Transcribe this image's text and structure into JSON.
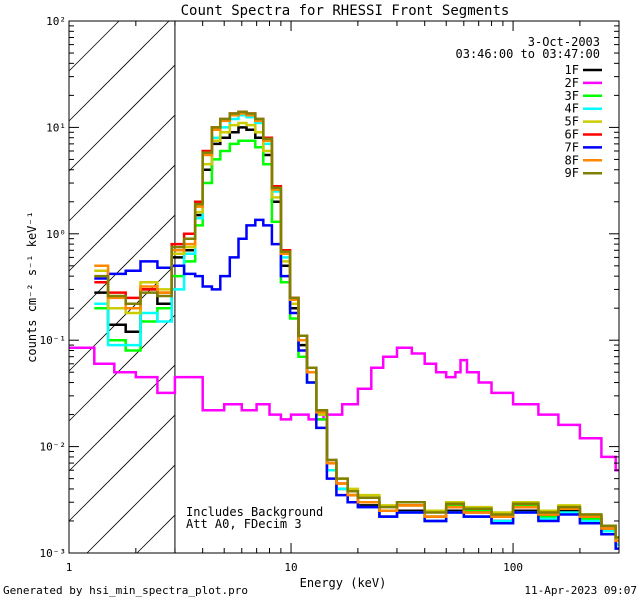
{
  "chart_data": {
    "type": "line",
    "title": "Count Spectra for RHESSI Front Segments",
    "xlabel": "Energy (keV)",
    "ylabel": "counts cm⁻² s⁻¹ keV⁻¹",
    "xscale": "log",
    "yscale": "log",
    "xlim": [
      1,
      300
    ],
    "ylim": [
      0.001,
      100
    ],
    "x_ticks": [
      {
        "value": 1,
        "label": "1"
      },
      {
        "value": 10,
        "label": "10"
      },
      {
        "value": 100,
        "label": "100"
      }
    ],
    "y_ticks": [
      {
        "value": 0.001,
        "label": "10⁻³"
      },
      {
        "value": 0.01,
        "label": "10⁻²"
      },
      {
        "value": 0.1,
        "label": "10⁻¹"
      },
      {
        "value": 1,
        "label": "10⁰"
      },
      {
        "value": 10,
        "label": "10¹"
      },
      {
        "value": 100,
        "label": "10²"
      }
    ],
    "hatched_region": [
      1,
      3
    ],
    "date": "3-Oct-2003",
    "time_range": "03:46:00 to 03:47:00",
    "legend_position": "top-right",
    "annotation_lines": [
      "Includes Background",
      "Att A0, FDecim 3"
    ],
    "footer_left": "Generated by hsi_min_spectra_plot.pro",
    "footer_right": "11-Apr-2023 09:07",
    "series": [
      {
        "name": "1F",
        "color": "#000000",
        "x": [
          1.3,
          1.5,
          1.8,
          2.1,
          2.5,
          2.9,
          3.3,
          3.7,
          4.0,
          4.4,
          4.8,
          5.3,
          5.8,
          6.3,
          6.9,
          7.5,
          8.2,
          9.0,
          9.9,
          10.8,
          11.8,
          13.0,
          14.5,
          16.0,
          18.0,
          20.0,
          25.0,
          30.0,
          40.0,
          50.0,
          60.0,
          80.0,
          100.0,
          130.0,
          160.0,
          200.0,
          250.0,
          290.0
        ],
        "y": [
          0.28,
          0.14,
          0.12,
          0.3,
          0.22,
          0.6,
          0.7,
          1.5,
          4.0,
          7.0,
          8.0,
          9.0,
          10.0,
          9.5,
          8.0,
          5.5,
          2.0,
          0.5,
          0.2,
          0.09,
          0.05,
          0.02,
          0.006,
          0.004,
          0.003,
          0.0028,
          0.0022,
          0.0025,
          0.002,
          0.0025,
          0.0022,
          0.002,
          0.0025,
          0.0022,
          0.0025,
          0.0021,
          0.0016,
          0.0012
        ]
      },
      {
        "name": "2F",
        "color": "#ff00ff",
        "x": [
          1.0,
          1.3,
          1.6,
          2.0,
          2.5,
          3.0,
          3.5,
          4.0,
          5.0,
          6.0,
          7.0,
          8.0,
          9.0,
          10.0,
          12.0,
          14.0,
          17.0,
          20.0,
          23.0,
          26.0,
          30.0,
          35.0,
          40.0,
          45.0,
          50.0,
          55.0,
          58.0,
          62.0,
          70.0,
          80.0,
          100.0,
          130.0,
          160.0,
          200.0,
          250.0,
          290.0
        ],
        "y": [
          0.085,
          0.06,
          0.05,
          0.045,
          0.032,
          0.045,
          0.045,
          0.022,
          0.025,
          0.022,
          0.025,
          0.02,
          0.018,
          0.02,
          0.018,
          0.02,
          0.025,
          0.035,
          0.055,
          0.07,
          0.085,
          0.075,
          0.06,
          0.05,
          0.045,
          0.05,
          0.065,
          0.05,
          0.04,
          0.032,
          0.025,
          0.02,
          0.016,
          0.012,
          0.008,
          0.006
        ]
      },
      {
        "name": "3F",
        "color": "#00ff00",
        "x": [
          1.3,
          1.5,
          1.8,
          2.1,
          2.5,
          2.9,
          3.3,
          3.7,
          4.0,
          4.4,
          4.8,
          5.3,
          5.8,
          6.3,
          6.9,
          7.5,
          8.2,
          9.0,
          9.9,
          10.8,
          11.8,
          13.0,
          14.5,
          16.0,
          18.0,
          20.0,
          25.0,
          30.0,
          40.0,
          50.0,
          60.0,
          80.0,
          100.0,
          130.0,
          160.0,
          200.0,
          250.0,
          290.0
        ],
        "y": [
          0.2,
          0.1,
          0.08,
          0.15,
          0.2,
          0.4,
          0.55,
          1.2,
          3.0,
          5.0,
          6.0,
          7.0,
          7.5,
          7.5,
          6.5,
          4.5,
          1.3,
          0.35,
          0.16,
          0.07,
          0.04,
          0.018,
          0.006,
          0.004,
          0.0035,
          0.003,
          0.0025,
          0.0028,
          0.0022,
          0.0028,
          0.0025,
          0.0022,
          0.0028,
          0.0022,
          0.0026,
          0.0021,
          0.0017,
          0.0013
        ]
      },
      {
        "name": "4F",
        "color": "#00ffff",
        "x": [
          1.3,
          1.5,
          1.8,
          2.1,
          2.5,
          2.9,
          3.3,
          3.7,
          4.0,
          4.4,
          4.8,
          5.3,
          5.8,
          6.3,
          6.9,
          7.5,
          8.2,
          9.0,
          9.9,
          10.8,
          11.8,
          13.0,
          14.5,
          16.0,
          18.0,
          20.0,
          25.0,
          30.0,
          40.0,
          50.0,
          60.0,
          80.0,
          100.0,
          130.0,
          160.0,
          200.0,
          250.0,
          290.0
        ],
        "y": [
          0.22,
          0.09,
          0.09,
          0.18,
          0.15,
          0.3,
          0.65,
          1.4,
          4.5,
          8.0,
          10.0,
          12.0,
          13.0,
          12.5,
          11.0,
          7.0,
          2.5,
          0.6,
          0.22,
          0.1,
          0.05,
          0.02,
          0.006,
          0.004,
          0.003,
          0.0027,
          0.0022,
          0.0024,
          0.002,
          0.0024,
          0.0022,
          0.002,
          0.0024,
          0.0021,
          0.0024,
          0.002,
          0.0016,
          0.0012
        ]
      },
      {
        "name": "5F",
        "color": "#cccc00",
        "x": [
          1.3,
          1.5,
          1.8,
          2.1,
          2.5,
          2.9,
          3.3,
          3.7,
          4.0,
          4.4,
          4.8,
          5.3,
          5.8,
          6.3,
          6.9,
          7.5,
          8.2,
          9.0,
          9.9,
          10.8,
          11.8,
          13.0,
          14.5,
          16.0,
          18.0,
          20.0,
          25.0,
          30.0,
          40.0,
          50.0,
          60.0,
          80.0,
          100.0,
          130.0,
          160.0,
          200.0,
          250.0,
          290.0
        ],
        "y": [
          0.45,
          0.2,
          0.18,
          0.35,
          0.3,
          0.65,
          0.75,
          1.6,
          4.5,
          7.5,
          9.0,
          10.5,
          11.0,
          10.5,
          9.0,
          6.0,
          2.2,
          0.55,
          0.22,
          0.1,
          0.05,
          0.02,
          0.007,
          0.005,
          0.004,
          0.0035,
          0.0028,
          0.003,
          0.0025,
          0.003,
          0.0027,
          0.0024,
          0.003,
          0.0025,
          0.0028,
          0.0023,
          0.0018,
          0.0014
        ]
      },
      {
        "name": "6F",
        "color": "#ff0000",
        "x": [
          1.3,
          1.5,
          1.8,
          2.1,
          2.5,
          2.9,
          3.3,
          3.7,
          4.0,
          4.4,
          4.8,
          5.3,
          5.8,
          6.3,
          6.9,
          7.5,
          8.2,
          9.0,
          9.9,
          10.8,
          11.8,
          13.0,
          14.5,
          16.0,
          18.0,
          20.0,
          25.0,
          30.0,
          40.0,
          50.0,
          60.0,
          80.0,
          100.0,
          130.0,
          160.0,
          200.0,
          250.0,
          290.0
        ],
        "y": [
          0.35,
          0.28,
          0.25,
          0.3,
          0.28,
          0.8,
          1.0,
          2.0,
          6.0,
          10.0,
          12.0,
          13.5,
          14.0,
          13.5,
          12.0,
          8.0,
          2.8,
          0.7,
          0.25,
          0.11,
          0.055,
          0.022,
          0.007,
          0.0045,
          0.0035,
          0.003,
          0.0025,
          0.0028,
          0.0022,
          0.0027,
          0.0024,
          0.0022,
          0.0027,
          0.0023,
          0.0026,
          0.0022,
          0.0017,
          0.0013
        ]
      },
      {
        "name": "7F",
        "color": "#0000ff",
        "x": [
          1.3,
          1.5,
          1.8,
          2.1,
          2.5,
          2.9,
          3.3,
          3.7,
          4.0,
          4.4,
          4.8,
          5.3,
          5.8,
          6.3,
          6.9,
          7.5,
          8.2,
          9.0,
          9.9,
          10.8,
          11.8,
          13.0,
          14.5,
          16.0,
          18.0,
          20.0,
          25.0,
          30.0,
          40.0,
          50.0,
          60.0,
          80.0,
          100.0,
          130.0,
          160.0,
          200.0,
          250.0,
          290.0
        ],
        "y": [
          0.38,
          0.42,
          0.45,
          0.55,
          0.48,
          0.5,
          0.42,
          0.4,
          0.32,
          0.3,
          0.4,
          0.6,
          0.9,
          1.2,
          1.35,
          1.2,
          0.8,
          0.4,
          0.18,
          0.08,
          0.04,
          0.015,
          0.005,
          0.0035,
          0.003,
          0.0027,
          0.0022,
          0.0024,
          0.002,
          0.0024,
          0.0022,
          0.0019,
          0.0024,
          0.002,
          0.0023,
          0.0019,
          0.0015,
          0.0011
        ]
      },
      {
        "name": "8F",
        "color": "#ff8800",
        "x": [
          1.3,
          1.5,
          1.8,
          2.1,
          2.5,
          2.9,
          3.3,
          3.7,
          4.0,
          4.4,
          4.8,
          5.3,
          5.8,
          6.3,
          6.9,
          7.5,
          8.2,
          9.0,
          9.9,
          10.8,
          11.8,
          13.0,
          14.5,
          16.0,
          18.0,
          20.0,
          25.0,
          30.0,
          40.0,
          50.0,
          60.0,
          80.0,
          100.0,
          130.0,
          160.0,
          200.0,
          250.0,
          290.0
        ],
        "y": [
          0.5,
          0.25,
          0.2,
          0.32,
          0.28,
          0.7,
          0.8,
          1.8,
          5.5,
          9.5,
          11.5,
          13.0,
          13.5,
          13.0,
          11.5,
          7.5,
          2.6,
          0.65,
          0.24,
          0.1,
          0.05,
          0.021,
          0.007,
          0.0045,
          0.0035,
          0.003,
          0.0025,
          0.0028,
          0.0022,
          0.0027,
          0.0024,
          0.0022,
          0.0027,
          0.0023,
          0.0026,
          0.0022,
          0.0017,
          0.0013
        ]
      },
      {
        "name": "9F",
        "color": "#808000",
        "x": [
          1.3,
          1.5,
          1.8,
          2.1,
          2.5,
          2.9,
          3.3,
          3.7,
          4.0,
          4.4,
          4.8,
          5.3,
          5.8,
          6.3,
          6.9,
          7.5,
          8.2,
          9.0,
          9.9,
          10.8,
          11.8,
          13.0,
          14.5,
          16.0,
          18.0,
          20.0,
          25.0,
          30.0,
          40.0,
          50.0,
          60.0,
          80.0,
          100.0,
          130.0,
          160.0,
          200.0,
          250.0,
          290.0
        ],
        "y": [
          0.4,
          0.26,
          0.22,
          0.28,
          0.26,
          0.75,
          0.9,
          1.9,
          5.8,
          10.0,
          12.0,
          13.5,
          14.0,
          13.5,
          12.0,
          7.8,
          2.7,
          0.68,
          0.25,
          0.11,
          0.055,
          0.022,
          0.0075,
          0.005,
          0.0038,
          0.0033,
          0.0027,
          0.003,
          0.0024,
          0.0029,
          0.0026,
          0.0023,
          0.0029,
          0.0024,
          0.0027,
          0.0023,
          0.0018,
          0.0014
        ]
      }
    ]
  }
}
